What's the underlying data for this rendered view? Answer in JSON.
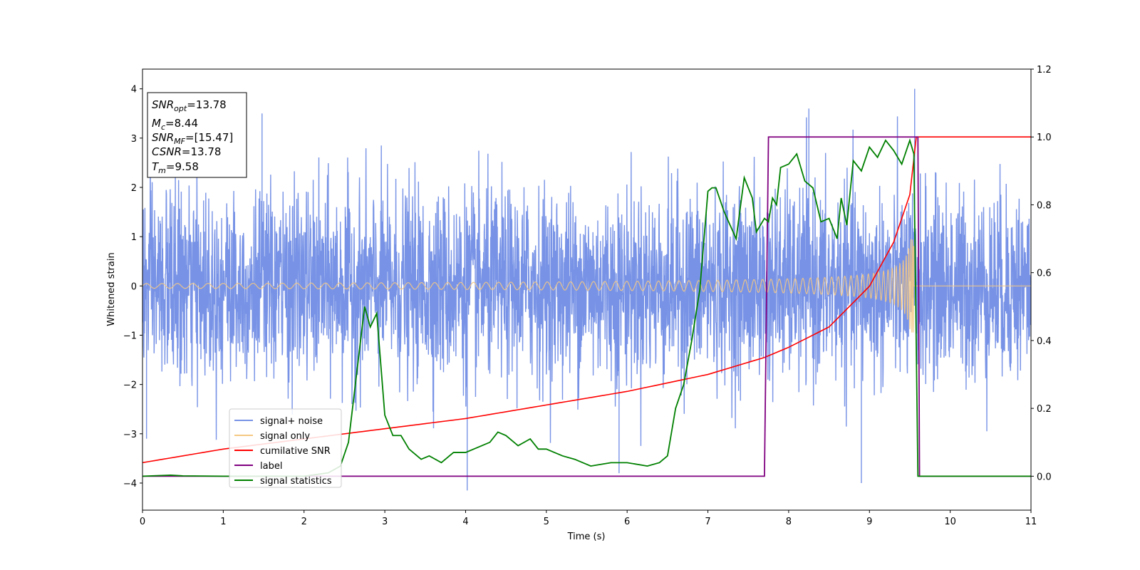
{
  "chart_data": {
    "type": "line",
    "xlabel": "Time (s)",
    "ylabel": "Whitened strain",
    "xlim": [
      0,
      11
    ],
    "ylim_left": [
      -4.55,
      4.4
    ],
    "ylim_right": [
      -0.1,
      1.2
    ],
    "x_ticks": [
      "0",
      "1",
      "2",
      "3",
      "4",
      "5",
      "6",
      "7",
      "8",
      "9",
      "10",
      "11"
    ],
    "y_ticks_left": [
      "4",
      "3",
      "2",
      "1",
      "0",
      "−1",
      "−2",
      "−3",
      "−4"
    ],
    "y_ticks_right": [
      "1.2",
      "1.0",
      "0.8",
      "0.6",
      "0.4",
      "0.2",
      "0.0"
    ],
    "grid": false,
    "legend_position": "lower-left",
    "annotation": {
      "snr_opt": {
        "base": "SNR",
        "sub": "opt",
        "value": "=13.78"
      },
      "mc": {
        "base": "M",
        "sub": "c",
        "value": "=8.44"
      },
      "snr_mf": {
        "base": "SNR",
        "sub": "MF",
        "value": "=[15.47]"
      },
      "csnr": {
        "base": "CSNR",
        "value": "=13.78"
      },
      "tm": {
        "base": "T",
        "sub": "m",
        "value": "=9.58"
      }
    },
    "series": [
      {
        "name": "signal+ noise",
        "axis": "left",
        "color": "#7893e6",
        "description_values": {
          "typical_band": [
            -2.0,
            2.0
          ],
          "max_spike": 4.0,
          "min_spike": -4.15
        }
      },
      {
        "name": "signal only",
        "axis": "left",
        "color": "#f5c882",
        "chirp": {
          "start_amplitude": 0.05,
          "end_time": 9.55,
          "end_amplitude": 0.95
        }
      },
      {
        "name": "cumilative SNR",
        "axis": "right",
        "color": "#ff0000",
        "x": [
          0,
          1,
          2,
          3,
          4,
          5,
          6,
          7,
          7.7,
          8,
          8.5,
          9,
          9.3,
          9.5,
          9.58,
          11
        ],
        "y": [
          0.04,
          0.08,
          0.11,
          0.14,
          0.17,
          0.21,
          0.25,
          0.3,
          0.35,
          0.38,
          0.44,
          0.56,
          0.69,
          0.83,
          1.0,
          1.0
        ]
      },
      {
        "name": "label",
        "axis": "right",
        "color": "#800080",
        "x": [
          0,
          7.7,
          7.75,
          9.6,
          9.62,
          11
        ],
        "y": [
          0.0,
          0.0,
          1.0,
          1.0,
          0.0,
          0.0
        ]
      },
      {
        "name": "signal statistics",
        "axis": "right",
        "color": "#008000",
        "x": [
          0,
          0.35,
          0.5,
          1,
          1.5,
          2,
          2.3,
          2.45,
          2.55,
          2.65,
          2.75,
          2.82,
          2.9,
          3.0,
          3.1,
          3.2,
          3.3,
          3.45,
          3.55,
          3.7,
          3.85,
          4.0,
          4.1,
          4.2,
          4.3,
          4.4,
          4.5,
          4.65,
          4.8,
          4.9,
          5.0,
          5.1,
          5.2,
          5.35,
          5.55,
          5.8,
          6.0,
          6.25,
          6.4,
          6.5,
          6.6,
          6.7,
          6.8,
          6.9,
          7.0,
          7.05,
          7.1,
          7.2,
          7.35,
          7.45,
          7.55,
          7.6,
          7.7,
          7.75,
          7.8,
          7.85,
          7.9,
          8.0,
          8.1,
          8.2,
          8.3,
          8.4,
          8.5,
          8.6,
          8.65,
          8.72,
          8.8,
          8.9,
          9.0,
          9.1,
          9.2,
          9.3,
          9.4,
          9.5,
          9.55,
          9.6,
          11
        ],
        "y": [
          0.0,
          0.003,
          0.001,
          0.0,
          0.0,
          0.0,
          0.01,
          0.03,
          0.1,
          0.3,
          0.5,
          0.44,
          0.48,
          0.18,
          0.12,
          0.12,
          0.08,
          0.05,
          0.06,
          0.04,
          0.07,
          0.07,
          0.08,
          0.09,
          0.1,
          0.13,
          0.12,
          0.09,
          0.11,
          0.08,
          0.08,
          0.07,
          0.06,
          0.05,
          0.03,
          0.04,
          0.04,
          0.03,
          0.04,
          0.06,
          0.2,
          0.27,
          0.4,
          0.55,
          0.84,
          0.85,
          0.85,
          0.78,
          0.7,
          0.88,
          0.82,
          0.72,
          0.76,
          0.75,
          0.82,
          0.8,
          0.91,
          0.92,
          0.95,
          0.87,
          0.85,
          0.75,
          0.76,
          0.7,
          0.82,
          0.74,
          0.93,
          0.9,
          0.97,
          0.94,
          0.99,
          0.96,
          0.92,
          0.99,
          0.95,
          0.0,
          0.0
        ]
      }
    ]
  }
}
